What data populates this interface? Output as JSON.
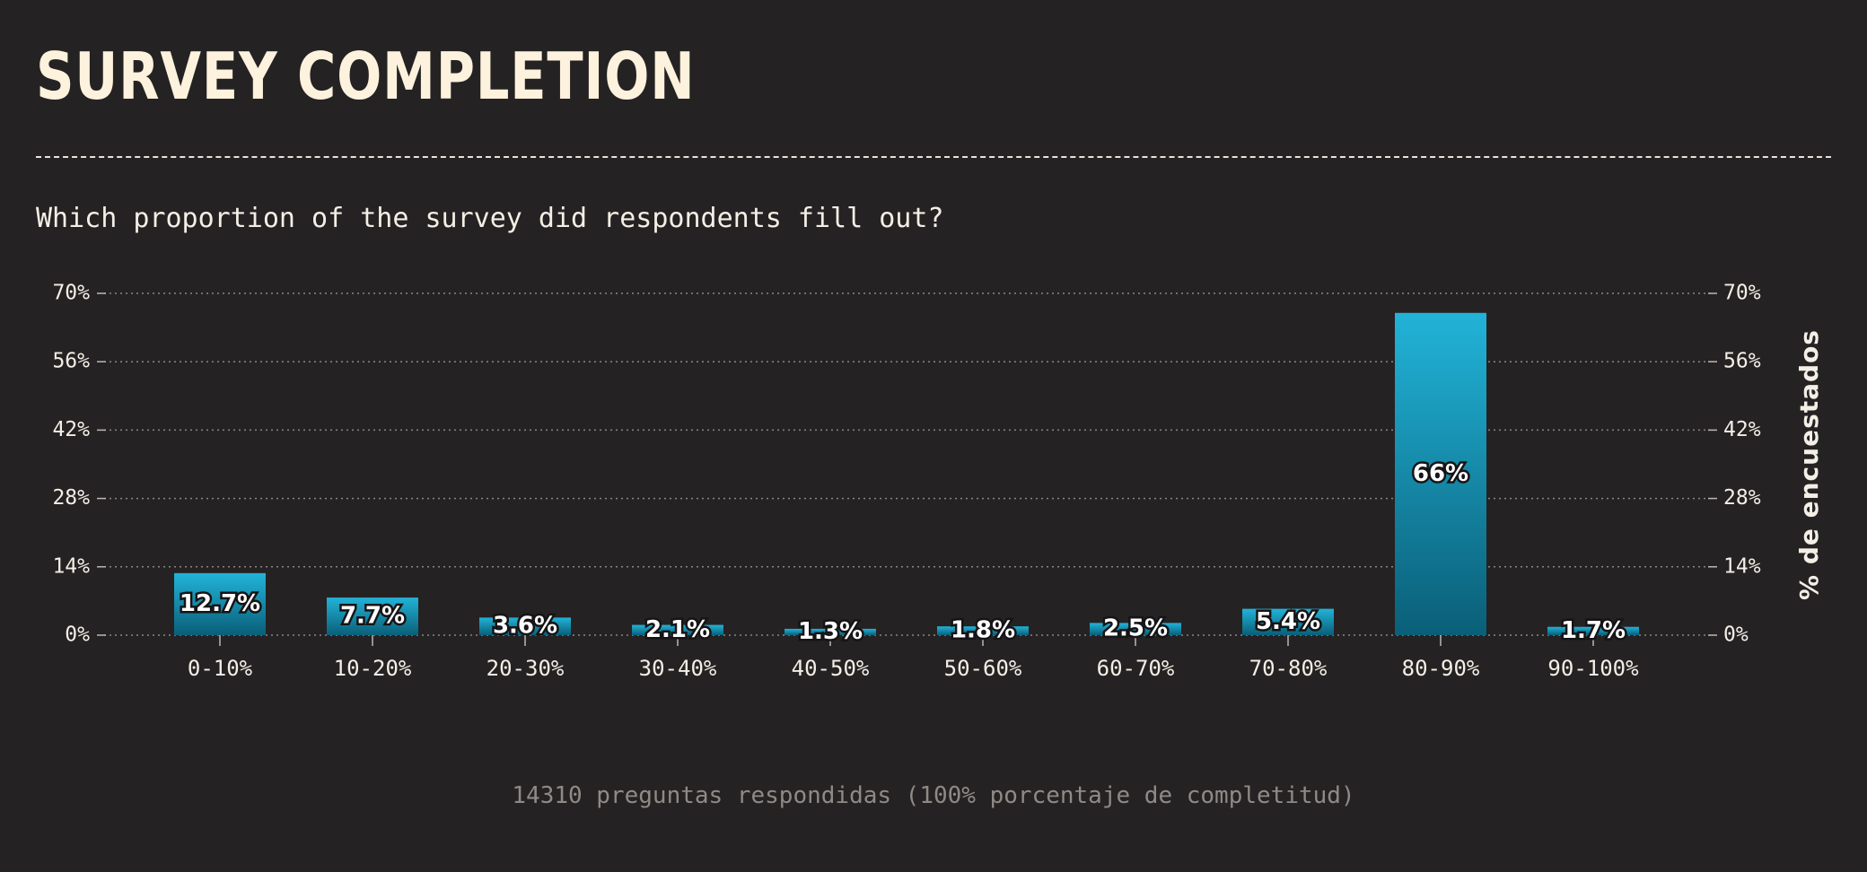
{
  "header": {
    "title": "SURVEY COMPLETION",
    "subtitle": "Which proportion of the survey did respondents fill out?"
  },
  "footer": {
    "note": "14310 preguntas respondidas (100% porcentaje de completitud)"
  },
  "colors": {
    "background": "#252223",
    "bar_top": "#22b3d8",
    "bar_bottom": "#0a5f78",
    "gridline": "#8a8684"
  },
  "chart_data": {
    "type": "bar",
    "categories": [
      "0-10%",
      "10-20%",
      "20-30%",
      "30-40%",
      "40-50%",
      "50-60%",
      "60-70%",
      "70-80%",
      "80-90%",
      "90-100%"
    ],
    "values": [
      12.7,
      7.7,
      3.6,
      2.1,
      1.3,
      1.8,
      2.5,
      5.4,
      66,
      1.7
    ],
    "data_labels": [
      "12.7%",
      "7.7%",
      "3.6%",
      "2.1%",
      "1.3%",
      "1.8%",
      "2.5%",
      "5.4%",
      "66%",
      "1.7%"
    ],
    "title": "SURVEY COMPLETION",
    "subtitle": "Which proportion of the survey did respondents fill out?",
    "xlabel": "",
    "ylabel": "% de encuestados",
    "ylim": [
      0,
      70
    ],
    "yticks": [
      0,
      14,
      28,
      42,
      56,
      70
    ],
    "ytick_labels": [
      "0%",
      "14%",
      "28%",
      "42%",
      "56%",
      "70%"
    ],
    "grid": true,
    "legend": "none"
  }
}
